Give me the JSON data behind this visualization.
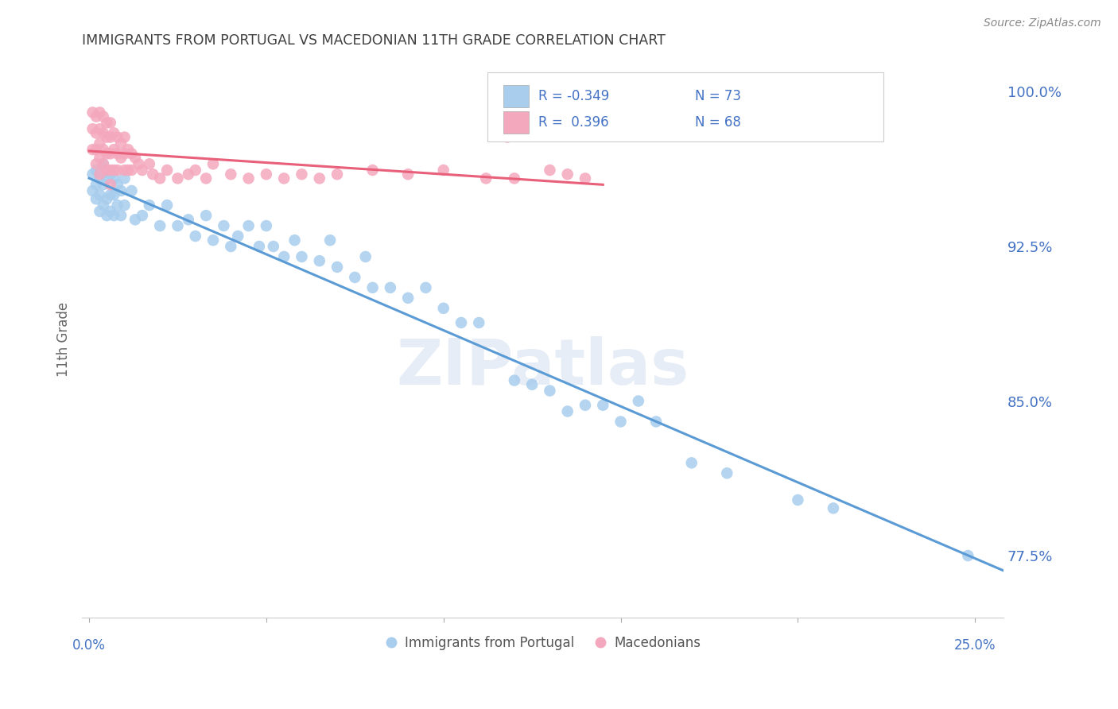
{
  "title": "IMMIGRANTS FROM PORTUGAL VS MACEDONIAN 11TH GRADE CORRELATION CHART",
  "source": "Source: ZipAtlas.com",
  "ylabel": "11th Grade",
  "ymin": 0.745,
  "ymax": 1.015,
  "xmin": -0.002,
  "xmax": 0.258,
  "blue_R": -0.349,
  "blue_N": 73,
  "pink_R": 0.396,
  "pink_N": 68,
  "blue_color": "#A8CDED",
  "pink_color": "#F4A8BE",
  "blue_line_color": "#5B9BD5",
  "pink_line_color": "#E8607A",
  "legend_text_color": "#4472C4",
  "title_color": "#404040",
  "grid_color": "#D8D8D8",
  "watermark": "ZIPatlas",
  "ytick_vals": [
    0.775,
    0.8,
    0.825,
    0.85,
    0.875,
    0.9,
    0.925,
    0.95,
    0.975,
    1.0
  ],
  "ytick_labels": [
    "77.5%",
    "",
    "",
    "85.0%",
    "",
    "",
    "92.5%",
    "",
    "",
    "100.0%"
  ],
  "blue_x": [
    0.001,
    0.001,
    0.002,
    0.002,
    0.002,
    0.003,
    0.003,
    0.003,
    0.004,
    0.004,
    0.004,
    0.005,
    0.005,
    0.005,
    0.006,
    0.006,
    0.006,
    0.007,
    0.007,
    0.007,
    0.008,
    0.008,
    0.009,
    0.009,
    0.01,
    0.01,
    0.012,
    0.013,
    0.015,
    0.017,
    0.02,
    0.022,
    0.025,
    0.028,
    0.03,
    0.033,
    0.035,
    0.038,
    0.04,
    0.042,
    0.045,
    0.048,
    0.05,
    0.052,
    0.055,
    0.058,
    0.06,
    0.065,
    0.068,
    0.07,
    0.075,
    0.078,
    0.08,
    0.085,
    0.09,
    0.095,
    0.1,
    0.105,
    0.11,
    0.12,
    0.125,
    0.13,
    0.135,
    0.14,
    0.145,
    0.15,
    0.155,
    0.16,
    0.17,
    0.18,
    0.2,
    0.21,
    0.248
  ],
  "blue_y": [
    0.96,
    0.952,
    0.962,
    0.955,
    0.948,
    0.958,
    0.95,
    0.942,
    0.965,
    0.955,
    0.945,
    0.958,
    0.948,
    0.94,
    0.96,
    0.95,
    0.942,
    0.958,
    0.95,
    0.94,
    0.955,
    0.945,
    0.952,
    0.94,
    0.958,
    0.945,
    0.952,
    0.938,
    0.94,
    0.945,
    0.935,
    0.945,
    0.935,
    0.938,
    0.93,
    0.94,
    0.928,
    0.935,
    0.925,
    0.93,
    0.935,
    0.925,
    0.935,
    0.925,
    0.92,
    0.928,
    0.92,
    0.918,
    0.928,
    0.915,
    0.91,
    0.92,
    0.905,
    0.905,
    0.9,
    0.905,
    0.895,
    0.888,
    0.888,
    0.86,
    0.858,
    0.855,
    0.845,
    0.848,
    0.848,
    0.84,
    0.85,
    0.84,
    0.82,
    0.815,
    0.802,
    0.798,
    0.775
  ],
  "pink_x": [
    0.001,
    0.001,
    0.001,
    0.002,
    0.002,
    0.002,
    0.002,
    0.003,
    0.003,
    0.003,
    0.003,
    0.003,
    0.004,
    0.004,
    0.004,
    0.004,
    0.005,
    0.005,
    0.005,
    0.005,
    0.006,
    0.006,
    0.006,
    0.006,
    0.006,
    0.007,
    0.007,
    0.007,
    0.008,
    0.008,
    0.008,
    0.009,
    0.009,
    0.01,
    0.01,
    0.01,
    0.011,
    0.011,
    0.012,
    0.012,
    0.013,
    0.014,
    0.015,
    0.017,
    0.018,
    0.02,
    0.022,
    0.025,
    0.028,
    0.03,
    0.033,
    0.035,
    0.04,
    0.045,
    0.05,
    0.055,
    0.06,
    0.065,
    0.07,
    0.08,
    0.09,
    0.1,
    0.112,
    0.118,
    0.12,
    0.13,
    0.135,
    0.14
  ],
  "pink_y": [
    0.99,
    0.982,
    0.972,
    0.988,
    0.98,
    0.972,
    0.965,
    0.99,
    0.982,
    0.975,
    0.968,
    0.96,
    0.988,
    0.98,
    0.972,
    0.965,
    0.985,
    0.978,
    0.97,
    0.962,
    0.985,
    0.978,
    0.97,
    0.962,
    0.955,
    0.98,
    0.972,
    0.962,
    0.978,
    0.97,
    0.962,
    0.975,
    0.968,
    0.978,
    0.97,
    0.962,
    0.972,
    0.962,
    0.97,
    0.962,
    0.968,
    0.965,
    0.962,
    0.965,
    0.96,
    0.958,
    0.962,
    0.958,
    0.96,
    0.962,
    0.958,
    0.965,
    0.96,
    0.958,
    0.96,
    0.958,
    0.96,
    0.958,
    0.96,
    0.962,
    0.96,
    0.962,
    0.958,
    0.978,
    0.958,
    0.962,
    0.96,
    0.958
  ]
}
